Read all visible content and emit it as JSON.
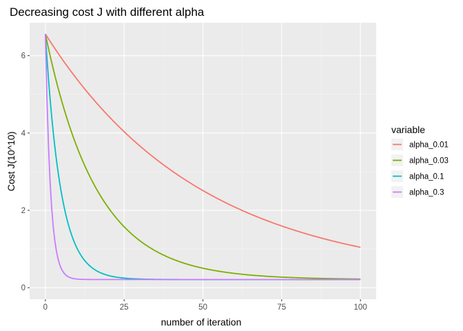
{
  "chart_data": {
    "type": "line",
    "title": "Decreasing cost J with different alpha",
    "xlabel": "number of iteration",
    "ylabel": "Cost J(10^10)",
    "xlim": [
      -5,
      105
    ],
    "ylim": [
      -0.3,
      6.85
    ],
    "x_ticks": [
      0,
      25,
      50,
      75,
      100
    ],
    "x_tick_labels": [
      "0",
      "25",
      "50",
      "75",
      "100"
    ],
    "y_ticks": [
      0,
      2,
      4,
      6
    ],
    "y_tick_labels": [
      "0",
      "2",
      "4",
      "6"
    ],
    "grid": true,
    "background": "#ebebeb",
    "legend": {
      "title": "variable",
      "position": "right"
    },
    "model": {
      "start": 6.56,
      "floor": 0.21,
      "iterations": [
        0,
        100
      ]
    },
    "series": [
      {
        "name": "alpha_0.01",
        "color": "#f8766d",
        "decay_rate": 0.0203
      },
      {
        "name": "alpha_0.03",
        "color": "#7cae00",
        "decay_rate": 0.0615
      },
      {
        "name": "alpha_0.1",
        "color": "#00bfc4",
        "decay_rate": 0.205
      },
      {
        "name": "alpha_0.3",
        "color": "#c77cff",
        "decay_rate": 0.615
      }
    ]
  }
}
